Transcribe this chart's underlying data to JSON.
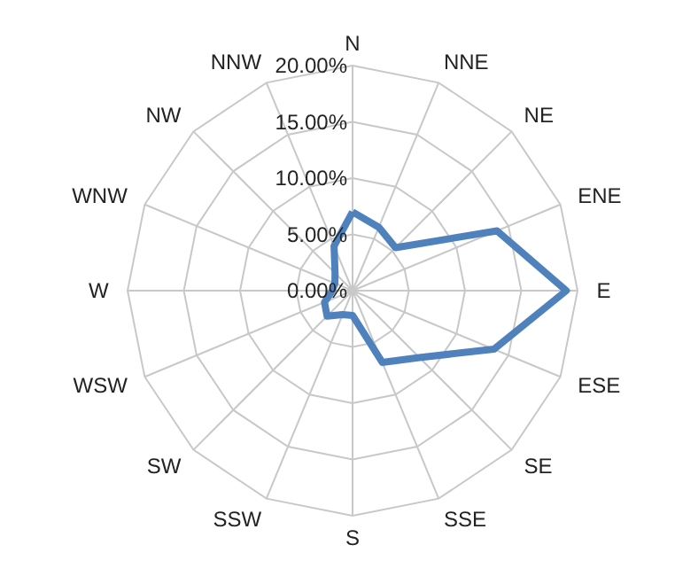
{
  "chart_data": {
    "type": "radar",
    "categories": [
      "N",
      "NNE",
      "NE",
      "ENE",
      "E",
      "ESE",
      "SE",
      "SSE",
      "S",
      "SSW",
      "SW",
      "WSW",
      "W",
      "WNW",
      "NW",
      "NNW"
    ],
    "series": [
      {
        "color": "#4f81bd",
        "values": [
          7.0,
          6.1,
          5.4,
          13.9,
          19.0,
          13.6,
          8.4,
          6.9,
          2.2,
          2.3,
          3.2,
          2.7,
          1.8,
          1.7,
          2.2,
          4.3
        ]
      }
    ],
    "ylim": [
      0,
      20
    ],
    "yticks": [
      {
        "value": 0,
        "label": "0.00%"
      },
      {
        "value": 5,
        "label": "5.00%"
      },
      {
        "value": 10,
        "label": "10.00%"
      },
      {
        "value": 15,
        "label": "15.00%"
      },
      {
        "value": 20,
        "label": "20.00%"
      }
    ],
    "grid": true
  }
}
